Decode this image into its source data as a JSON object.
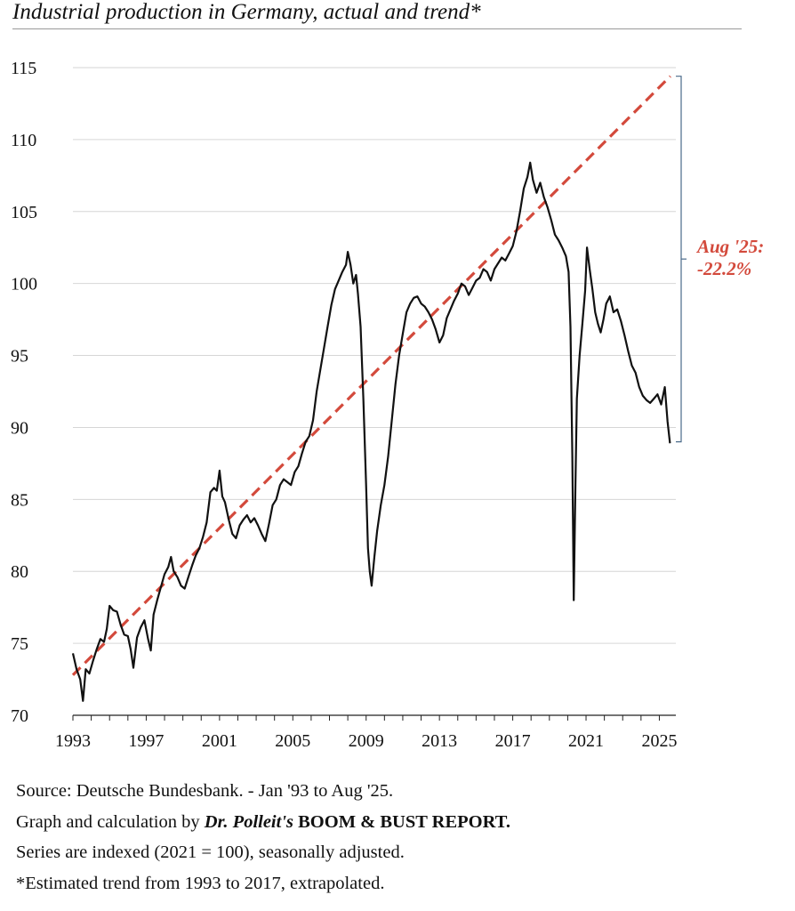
{
  "chart_data": {
    "type": "line",
    "title": "Industrial production in Germany, actual and trend*",
    "xlabel": "",
    "ylabel": "",
    "ylim": [
      70,
      115
    ],
    "xlim": [
      1993,
      2025.9
    ],
    "yticks": [
      70,
      75,
      80,
      85,
      90,
      95,
      100,
      105,
      110,
      115
    ],
    "xtick_labels": [
      "1993",
      "1997",
      "2001",
      "2005",
      "2009",
      "2013",
      "2017",
      "2021",
      "2025"
    ],
    "grid": "horizontal",
    "series": [
      {
        "name": "Industrial production (actual)",
        "color": "#111111",
        "points": [
          [
            1993.0,
            74.3
          ],
          [
            1993.2,
            73.2
          ],
          [
            1993.4,
            72.5
          ],
          [
            1993.55,
            71.0
          ],
          [
            1993.7,
            73.2
          ],
          [
            1993.9,
            72.9
          ],
          [
            1994.1,
            73.8
          ],
          [
            1994.3,
            74.6
          ],
          [
            1994.5,
            75.3
          ],
          [
            1994.7,
            75.1
          ],
          [
            1994.85,
            76.0
          ],
          [
            1995.0,
            77.6
          ],
          [
            1995.2,
            77.3
          ],
          [
            1995.4,
            77.2
          ],
          [
            1995.6,
            76.3
          ],
          [
            1995.8,
            75.6
          ],
          [
            1996.0,
            75.5
          ],
          [
            1996.15,
            74.6
          ],
          [
            1996.3,
            73.3
          ],
          [
            1996.5,
            75.4
          ],
          [
            1996.7,
            76.1
          ],
          [
            1996.9,
            76.6
          ],
          [
            1997.1,
            75.3
          ],
          [
            1997.25,
            74.5
          ],
          [
            1997.4,
            77.0
          ],
          [
            1997.6,
            78.0
          ],
          [
            1997.8,
            78.9
          ],
          [
            1998.0,
            79.8
          ],
          [
            1998.2,
            80.3
          ],
          [
            1998.35,
            81.0
          ],
          [
            1998.5,
            80.0
          ],
          [
            1998.7,
            79.6
          ],
          [
            1998.9,
            79.0
          ],
          [
            1999.1,
            78.8
          ],
          [
            1999.3,
            79.6
          ],
          [
            1999.5,
            80.4
          ],
          [
            1999.7,
            81.1
          ],
          [
            1999.9,
            81.6
          ],
          [
            2000.1,
            82.4
          ],
          [
            2000.3,
            83.4
          ],
          [
            2000.5,
            85.5
          ],
          [
            2000.7,
            85.8
          ],
          [
            2000.85,
            85.6
          ],
          [
            2001.0,
            87.0
          ],
          [
            2001.15,
            85.2
          ],
          [
            2001.3,
            84.8
          ],
          [
            2001.5,
            83.6
          ],
          [
            2001.7,
            82.6
          ],
          [
            2001.9,
            82.3
          ],
          [
            2002.1,
            83.2
          ],
          [
            2002.3,
            83.6
          ],
          [
            2002.5,
            83.9
          ],
          [
            2002.7,
            83.4
          ],
          [
            2002.9,
            83.7
          ],
          [
            2003.1,
            83.2
          ],
          [
            2003.3,
            82.6
          ],
          [
            2003.5,
            82.1
          ],
          [
            2003.7,
            83.3
          ],
          [
            2003.9,
            84.6
          ],
          [
            2004.1,
            85.0
          ],
          [
            2004.3,
            86.0
          ],
          [
            2004.5,
            86.4
          ],
          [
            2004.7,
            86.2
          ],
          [
            2004.9,
            86.0
          ],
          [
            2005.1,
            86.9
          ],
          [
            2005.3,
            87.3
          ],
          [
            2005.5,
            88.2
          ],
          [
            2005.7,
            89.0
          ],
          [
            2005.9,
            89.4
          ],
          [
            2006.1,
            90.5
          ],
          [
            2006.3,
            92.5
          ],
          [
            2006.5,
            94.0
          ],
          [
            2006.7,
            95.5
          ],
          [
            2006.9,
            97.0
          ],
          [
            2007.1,
            98.5
          ],
          [
            2007.3,
            99.6
          ],
          [
            2007.5,
            100.2
          ],
          [
            2007.7,
            100.8
          ],
          [
            2007.9,
            101.3
          ],
          [
            2008.0,
            102.2
          ],
          [
            2008.15,
            101.3
          ],
          [
            2008.3,
            100.0
          ],
          [
            2008.45,
            100.6
          ],
          [
            2008.55,
            99.3
          ],
          [
            2008.7,
            97.0
          ],
          [
            2008.85,
            92.0
          ],
          [
            2009.0,
            86.0
          ],
          [
            2009.1,
            81.6
          ],
          [
            2009.2,
            80.0
          ],
          [
            2009.3,
            79.0
          ],
          [
            2009.45,
            81.0
          ],
          [
            2009.6,
            82.8
          ],
          [
            2009.8,
            84.6
          ],
          [
            2010.0,
            86.0
          ],
          [
            2010.2,
            88.0
          ],
          [
            2010.4,
            90.5
          ],
          [
            2010.6,
            93.0
          ],
          [
            2010.8,
            95.0
          ],
          [
            2011.0,
            96.5
          ],
          [
            2011.2,
            98.0
          ],
          [
            2011.4,
            98.6
          ],
          [
            2011.6,
            99.0
          ],
          [
            2011.8,
            99.1
          ],
          [
            2012.0,
            98.6
          ],
          [
            2012.2,
            98.4
          ],
          [
            2012.4,
            98.0
          ],
          [
            2012.6,
            97.5
          ],
          [
            2012.8,
            96.8
          ],
          [
            2013.0,
            95.9
          ],
          [
            2013.2,
            96.4
          ],
          [
            2013.4,
            97.6
          ],
          [
            2013.6,
            98.2
          ],
          [
            2013.8,
            98.8
          ],
          [
            2014.0,
            99.3
          ],
          [
            2014.2,
            100.0
          ],
          [
            2014.4,
            99.8
          ],
          [
            2014.6,
            99.2
          ],
          [
            2014.8,
            99.7
          ],
          [
            2015.0,
            100.2
          ],
          [
            2015.2,
            100.4
          ],
          [
            2015.4,
            101.0
          ],
          [
            2015.6,
            100.8
          ],
          [
            2015.8,
            100.2
          ],
          [
            2016.0,
            101.0
          ],
          [
            2016.2,
            101.4
          ],
          [
            2016.4,
            101.8
          ],
          [
            2016.6,
            101.6
          ],
          [
            2016.8,
            102.1
          ],
          [
            2017.0,
            102.6
          ],
          [
            2017.2,
            103.6
          ],
          [
            2017.4,
            105.0
          ],
          [
            2017.6,
            106.6
          ],
          [
            2017.8,
            107.4
          ],
          [
            2017.95,
            108.4
          ],
          [
            2018.1,
            107.2
          ],
          [
            2018.3,
            106.3
          ],
          [
            2018.5,
            107.0
          ],
          [
            2018.7,
            106.0
          ],
          [
            2018.9,
            105.3
          ],
          [
            2019.1,
            104.4
          ],
          [
            2019.3,
            103.4
          ],
          [
            2019.5,
            103.0
          ],
          [
            2019.7,
            102.5
          ],
          [
            2019.9,
            101.9
          ],
          [
            2020.05,
            100.8
          ],
          [
            2020.15,
            97.0
          ],
          [
            2020.25,
            88.0
          ],
          [
            2020.33,
            78.0
          ],
          [
            2020.42,
            86.0
          ],
          [
            2020.5,
            92.0
          ],
          [
            2020.65,
            95.0
          ],
          [
            2020.8,
            97.2
          ],
          [
            2020.95,
            99.5
          ],
          [
            2021.05,
            102.5
          ],
          [
            2021.2,
            101.0
          ],
          [
            2021.35,
            99.6
          ],
          [
            2021.5,
            98.0
          ],
          [
            2021.65,
            97.2
          ],
          [
            2021.8,
            96.6
          ],
          [
            2021.95,
            97.5
          ],
          [
            2022.1,
            98.6
          ],
          [
            2022.3,
            99.1
          ],
          [
            2022.5,
            98.0
          ],
          [
            2022.7,
            98.2
          ],
          [
            2022.9,
            97.4
          ],
          [
            2023.1,
            96.4
          ],
          [
            2023.3,
            95.3
          ],
          [
            2023.5,
            94.3
          ],
          [
            2023.7,
            93.8
          ],
          [
            2023.9,
            92.8
          ],
          [
            2024.1,
            92.2
          ],
          [
            2024.3,
            91.9
          ],
          [
            2024.5,
            91.7
          ],
          [
            2024.7,
            92.0
          ],
          [
            2024.9,
            92.3
          ],
          [
            2025.1,
            91.6
          ],
          [
            2025.3,
            92.8
          ],
          [
            2025.45,
            90.4
          ],
          [
            2025.58,
            88.9
          ]
        ]
      },
      {
        "name": "Estimated trend (1993-2017, extrapolated)",
        "color": "#d34a3c",
        "dashed": true,
        "points": [
          [
            1993.0,
            72.8
          ],
          [
            2025.6,
            114.4
          ]
        ]
      }
    ],
    "annotation": {
      "label_line1": "Aug '25:",
      "label_line2": "-22.2%",
      "bracket_from": 89.0,
      "bracket_to": 114.4,
      "color": "#d34a3c"
    }
  },
  "footer": {
    "source": "Source: Deutsche Bundesbank. - Jan '93 to Aug '25.",
    "graph_prefix": "Graph and calculation by",
    "graph_author": "Dr. Polleit's",
    "graph_report": "BOOM & BUST REPORT.",
    "indexed": "Series are indexed (2021 = 100), seasonally adjusted.",
    "trend_note": "*Estimated trend from 1993 to 2017, extrapolated."
  }
}
